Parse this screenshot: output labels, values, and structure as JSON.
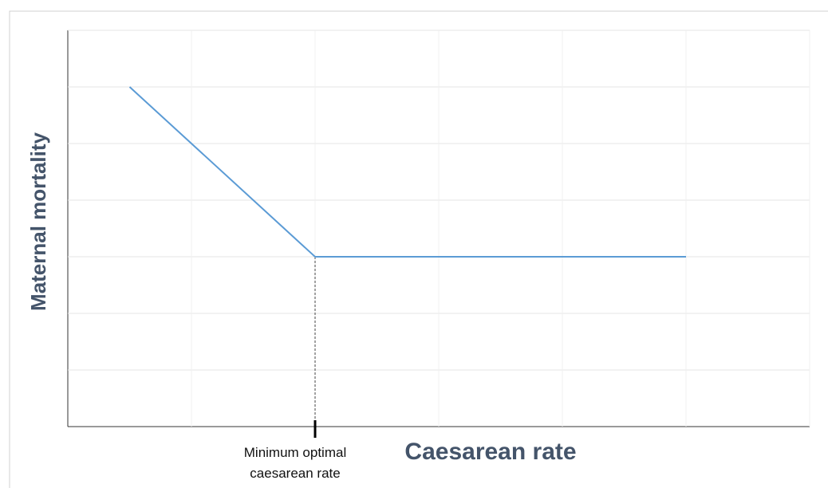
{
  "chart_data": {
    "type": "line",
    "xlabel": "Caesarean rate",
    "ylabel": "Maternal mortality",
    "x": [
      0.5,
      2,
      5
    ],
    "series": [
      {
        "name": "Maternal mortality",
        "color": "#5b9bd5",
        "values": [
          6,
          3,
          3
        ]
      }
    ],
    "xlim": [
      0,
      6
    ],
    "ylim": [
      0,
      7
    ],
    "xgrid": [
      1,
      2,
      3,
      4,
      5,
      6
    ],
    "ygrid": [
      1,
      2,
      3,
      4,
      5,
      6,
      7
    ],
    "annotation": {
      "text": "Minimum optimal caesarean rate",
      "x": 2
    }
  }
}
